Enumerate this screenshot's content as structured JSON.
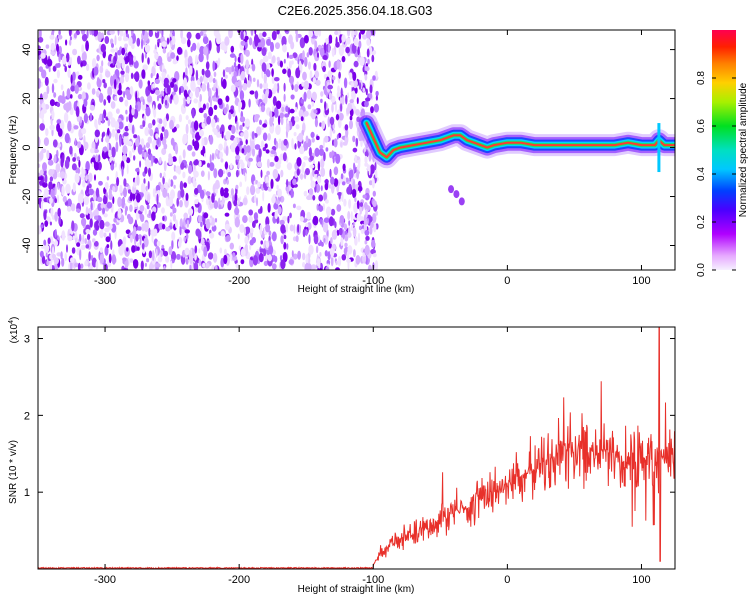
{
  "title": "C2E6.2025.356.04.18.G03",
  "chart_data": [
    {
      "type": "heatmap",
      "xlabel": "Height of straight line (km)",
      "ylabel": "Frequency (Hz)",
      "xlim": [
        -350,
        125
      ],
      "ylim": [
        -50,
        48
      ],
      "xticks": [
        -300,
        -200,
        -100,
        0,
        100
      ],
      "yticks": [
        -40,
        -20,
        0,
        20,
        40
      ],
      "noise_region_x": [
        -350,
        -100
      ],
      "signal_track": {
        "x": [
          -105,
          -100,
          -95,
          -90,
          -85,
          -80,
          -70,
          -60,
          -50,
          -40,
          -35,
          -30,
          -20,
          -15,
          -10,
          0,
          10,
          20,
          40,
          60,
          80,
          90,
          100,
          110,
          113,
          117,
          125
        ],
        "freq": [
          10,
          4,
          -2,
          -4,
          -1,
          0,
          1,
          2,
          3,
          5,
          5,
          3,
          1,
          0,
          1,
          2,
          2,
          1,
          1,
          1,
          1,
          2,
          1,
          1,
          3,
          1,
          1
        ]
      },
      "colorbar": {
        "label": "Normalized spectral amplitude",
        "range": [
          0.0,
          1.0
        ],
        "ticks": [
          "0.0",
          "0.2",
          "0.4",
          "0.6",
          "0.8"
        ]
      }
    },
    {
      "type": "line",
      "xlabel": "Height of straight line (km)",
      "ylabel": "SNR (10 * v/v)",
      "scale_label": "(x10",
      "scale_exponent": "4",
      "scale_close": ")",
      "xlim": [
        -350,
        125
      ],
      "ylim": [
        0,
        3.15
      ],
      "xticks": [
        -300,
        -200,
        -100,
        0,
        100
      ],
      "yticks": [
        1,
        2,
        3
      ],
      "series": [
        {
          "name": "SNR",
          "color": "#e8302a",
          "x": [
            -350,
            -110,
            -100,
            -95,
            -90,
            -80,
            -70,
            -60,
            -50,
            -40,
            -30,
            -20,
            -10,
            0,
            10,
            20,
            30,
            40,
            50,
            60,
            70,
            80,
            90,
            100,
            108,
            110,
            112,
            113,
            114,
            116,
            120,
            125
          ],
          "y": [
            0.0,
            0.0,
            0.05,
            0.2,
            0.3,
            0.4,
            0.45,
            0.55,
            0.65,
            0.75,
            0.8,
            0.9,
            1.0,
            1.1,
            1.2,
            1.3,
            1.4,
            1.5,
            1.55,
            1.55,
            1.55,
            1.5,
            1.45,
            1.45,
            1.45,
            1.3,
            1.5,
            0.9,
            1.6,
            1.45,
            1.45,
            1.45
          ]
        }
      ]
    }
  ]
}
